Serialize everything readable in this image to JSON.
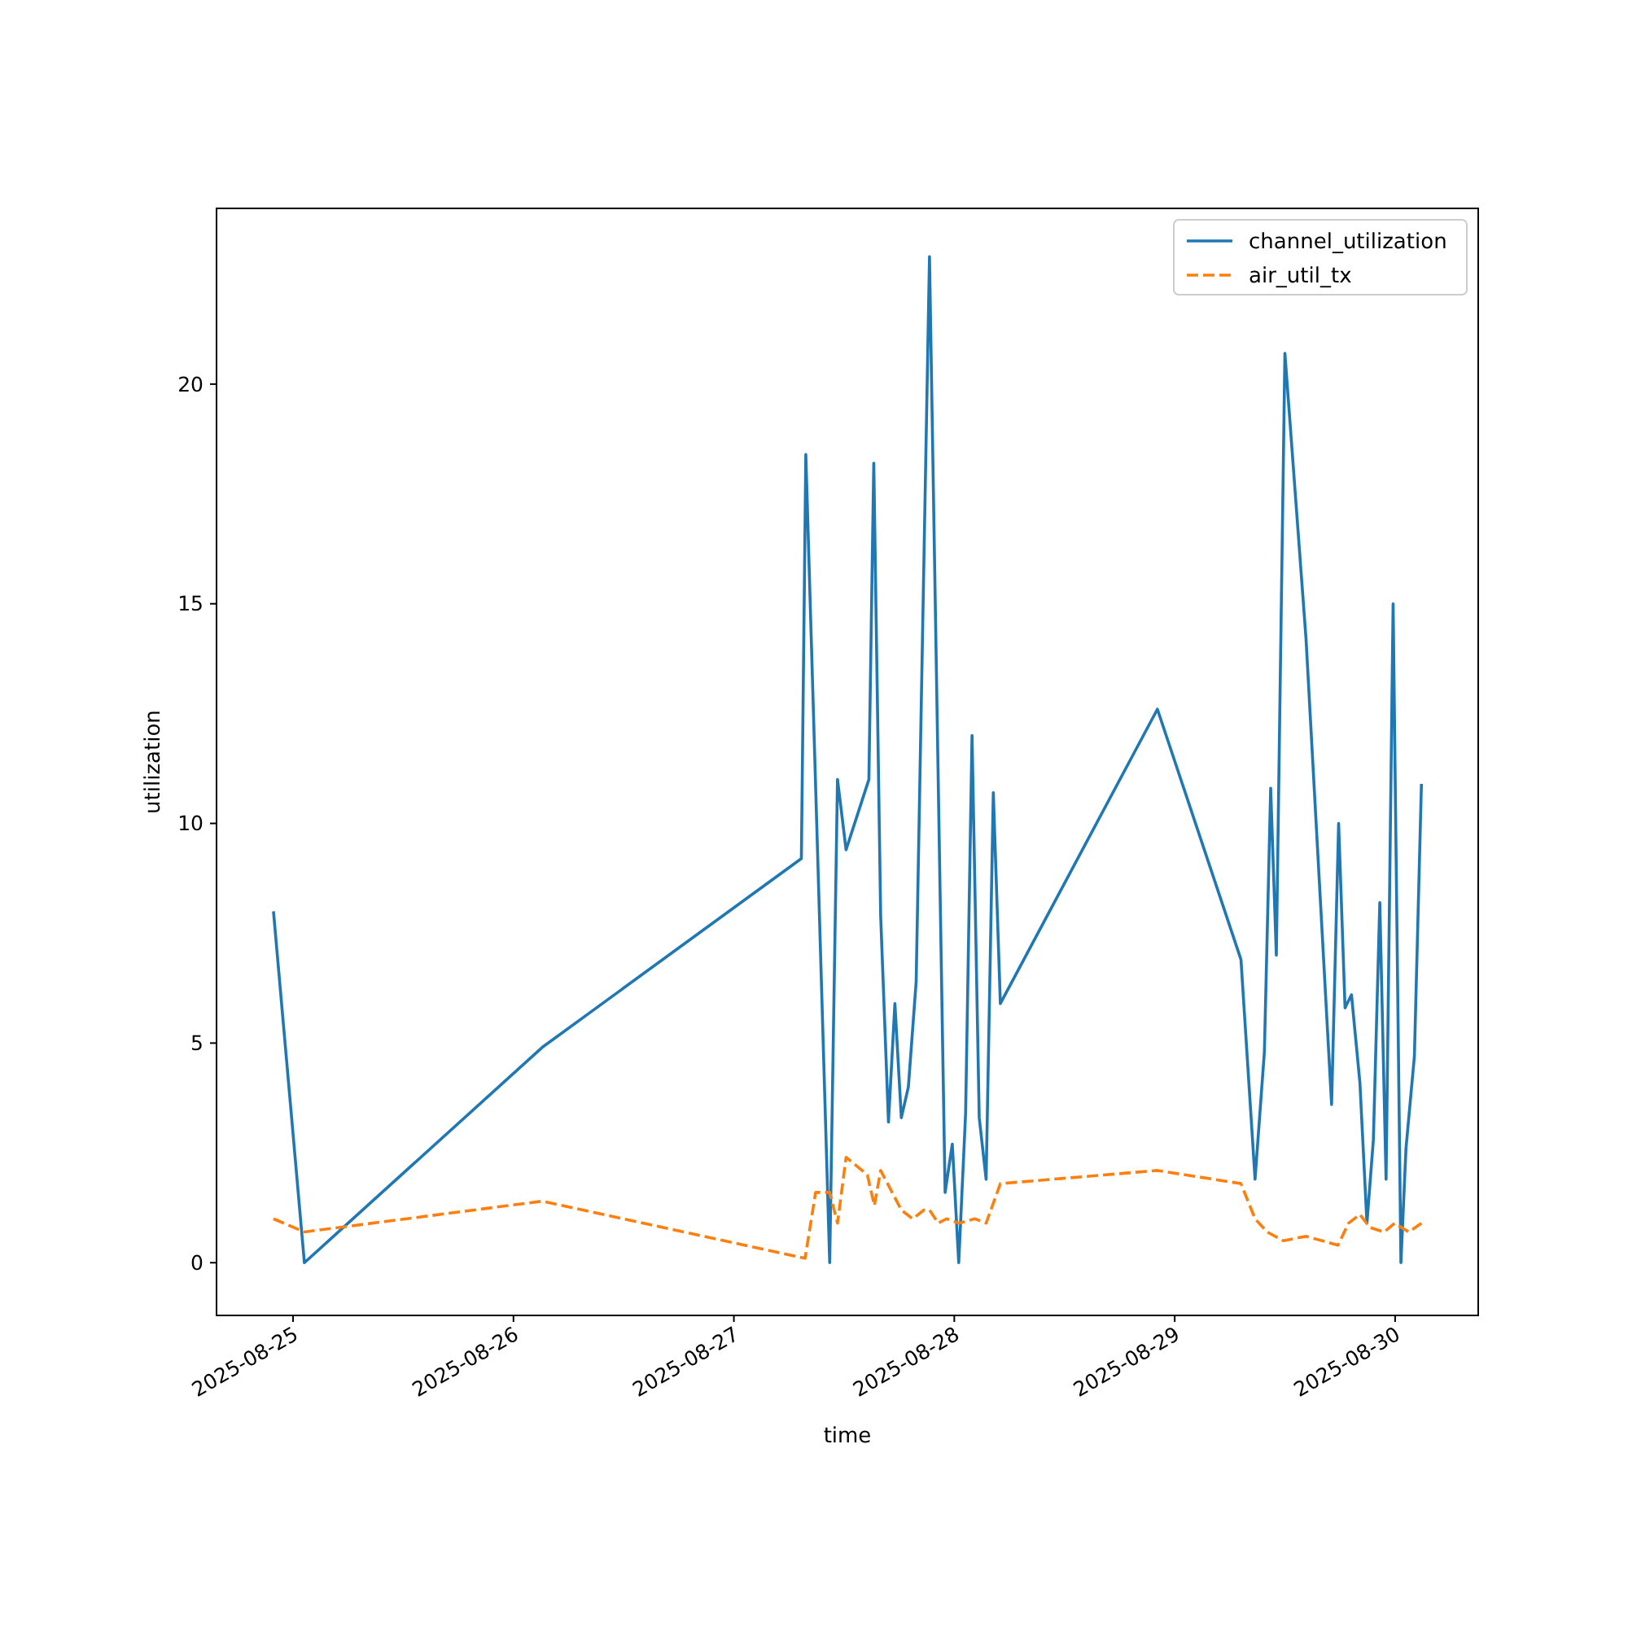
{
  "chart_data": {
    "type": "line",
    "xlabel": "time",
    "ylabel": "utilization",
    "xlim": [
      "2025-08-24T15:40",
      "2025-08-30T09:03"
    ],
    "ylim": [
      -1.2,
      24.0
    ],
    "xticks": [
      "2025-08-25",
      "2025-08-26",
      "2025-08-27",
      "2025-08-28",
      "2025-08-29",
      "2025-08-30"
    ],
    "yticks": [
      0,
      5,
      10,
      15,
      20
    ],
    "grid": false,
    "legend": "top right",
    "marker": "none",
    "series": [
      {
        "name": "channel_utilization",
        "color": "#1f77b4",
        "line_style": "solid",
        "x": [
          "2025-08-24T21:52",
          "2025-08-25T01:14",
          "2025-08-26T03:07",
          "2025-08-27T07:21",
          "2025-08-27T07:50",
          "2025-08-27T10:26",
          "2025-08-27T11:17",
          "2025-08-27T12:13",
          "2025-08-27T14:42",
          "2025-08-27T15:14",
          "2025-08-27T15:59",
          "2025-08-27T16:50",
          "2025-08-27T17:32",
          "2025-08-27T18:14",
          "2025-08-27T19:00",
          "2025-08-27T19:51",
          "2025-08-27T21:18",
          "2025-08-27T23:00",
          "2025-08-27T23:47",
          "2025-08-28T00:29",
          "2025-08-28T01:14",
          "2025-08-28T01:56",
          "2025-08-28T02:43",
          "2025-08-28T03:28",
          "2025-08-28T04:15",
          "2025-08-28T05:01",
          "2025-08-28T22:07",
          "2025-08-29T07:13",
          "2025-08-29T08:45",
          "2025-08-29T09:46",
          "2025-08-29T10:27",
          "2025-08-29T11:04",
          "2025-08-29T12:00",
          "2025-08-29T14:18",
          "2025-08-29T17:05",
          "2025-08-29T17:51",
          "2025-08-29T18:33",
          "2025-08-29T19:15",
          "2025-08-29T20:10",
          "2025-08-29T20:56",
          "2025-08-29T21:38",
          "2025-08-29T22:20",
          "2025-08-29T23:01",
          "2025-08-29T23:47",
          "2025-08-30T00:38",
          "2025-08-30T01:11",
          "2025-08-30T02:06",
          "2025-08-30T02:52"
        ],
        "values": [
          8.0,
          0.0,
          4.9,
          9.2,
          18.4,
          0.0,
          11.0,
          9.4,
          11.0,
          18.2,
          7.9,
          3.2,
          5.9,
          3.3,
          4.0,
          6.4,
          22.9,
          1.6,
          2.7,
          0.0,
          3.4,
          12.0,
          3.3,
          1.9,
          10.7,
          5.9,
          12.6,
          6.9,
          1.9,
          4.8,
          10.8,
          7.0,
          20.7,
          14.2,
          3.6,
          10.0,
          5.8,
          6.1,
          4.1,
          0.9,
          2.8,
          8.2,
          1.9,
          15.0,
          0.0,
          2.6,
          4.7,
          10.9
        ]
      },
      {
        "name": "air_util_tx",
        "color": "#ff7f0e",
        "line_style": "dashed",
        "x": [
          "2025-08-24T21:52",
          "2025-08-25T01:14",
          "2025-08-26T03:07",
          "2025-08-27T07:45",
          "2025-08-27T08:54",
          "2025-08-27T10:26",
          "2025-08-27T11:17",
          "2025-08-27T12:13",
          "2025-08-27T14:32",
          "2025-08-27T15:18",
          "2025-08-27T15:59",
          "2025-08-27T18:14",
          "2025-08-27T19:28",
          "2025-08-27T20:42",
          "2025-08-27T21:18",
          "2025-08-27T22:15",
          "2025-08-27T23:10",
          "2025-08-28T00:29",
          "2025-08-28T02:15",
          "2025-08-28T03:28",
          "2025-08-28T05:01",
          "2025-08-28T22:07",
          "2025-08-29T07:13",
          "2025-08-29T08:45",
          "2025-08-29T10:04",
          "2025-08-29T11:50",
          "2025-08-29T14:18",
          "2025-08-29T17:47",
          "2025-08-29T18:56",
          "2025-08-29T20:10",
          "2025-08-29T21:15",
          "2025-08-29T22:48",
          "2025-08-29T23:57",
          "2025-08-30T01:29",
          "2025-08-30T02:52"
        ],
        "values": [
          1.0,
          0.7,
          1.4,
          0.1,
          1.6,
          1.6,
          0.9,
          2.4,
          2.0,
          1.3,
          2.1,
          1.2,
          1.0,
          1.2,
          1.2,
          0.9,
          1.0,
          0.9,
          1.0,
          0.9,
          1.8,
          2.1,
          1.8,
          1.0,
          0.7,
          0.5,
          0.6,
          0.4,
          0.9,
          1.1,
          0.8,
          0.7,
          0.9,
          0.7,
          0.9
        ]
      }
    ]
  }
}
